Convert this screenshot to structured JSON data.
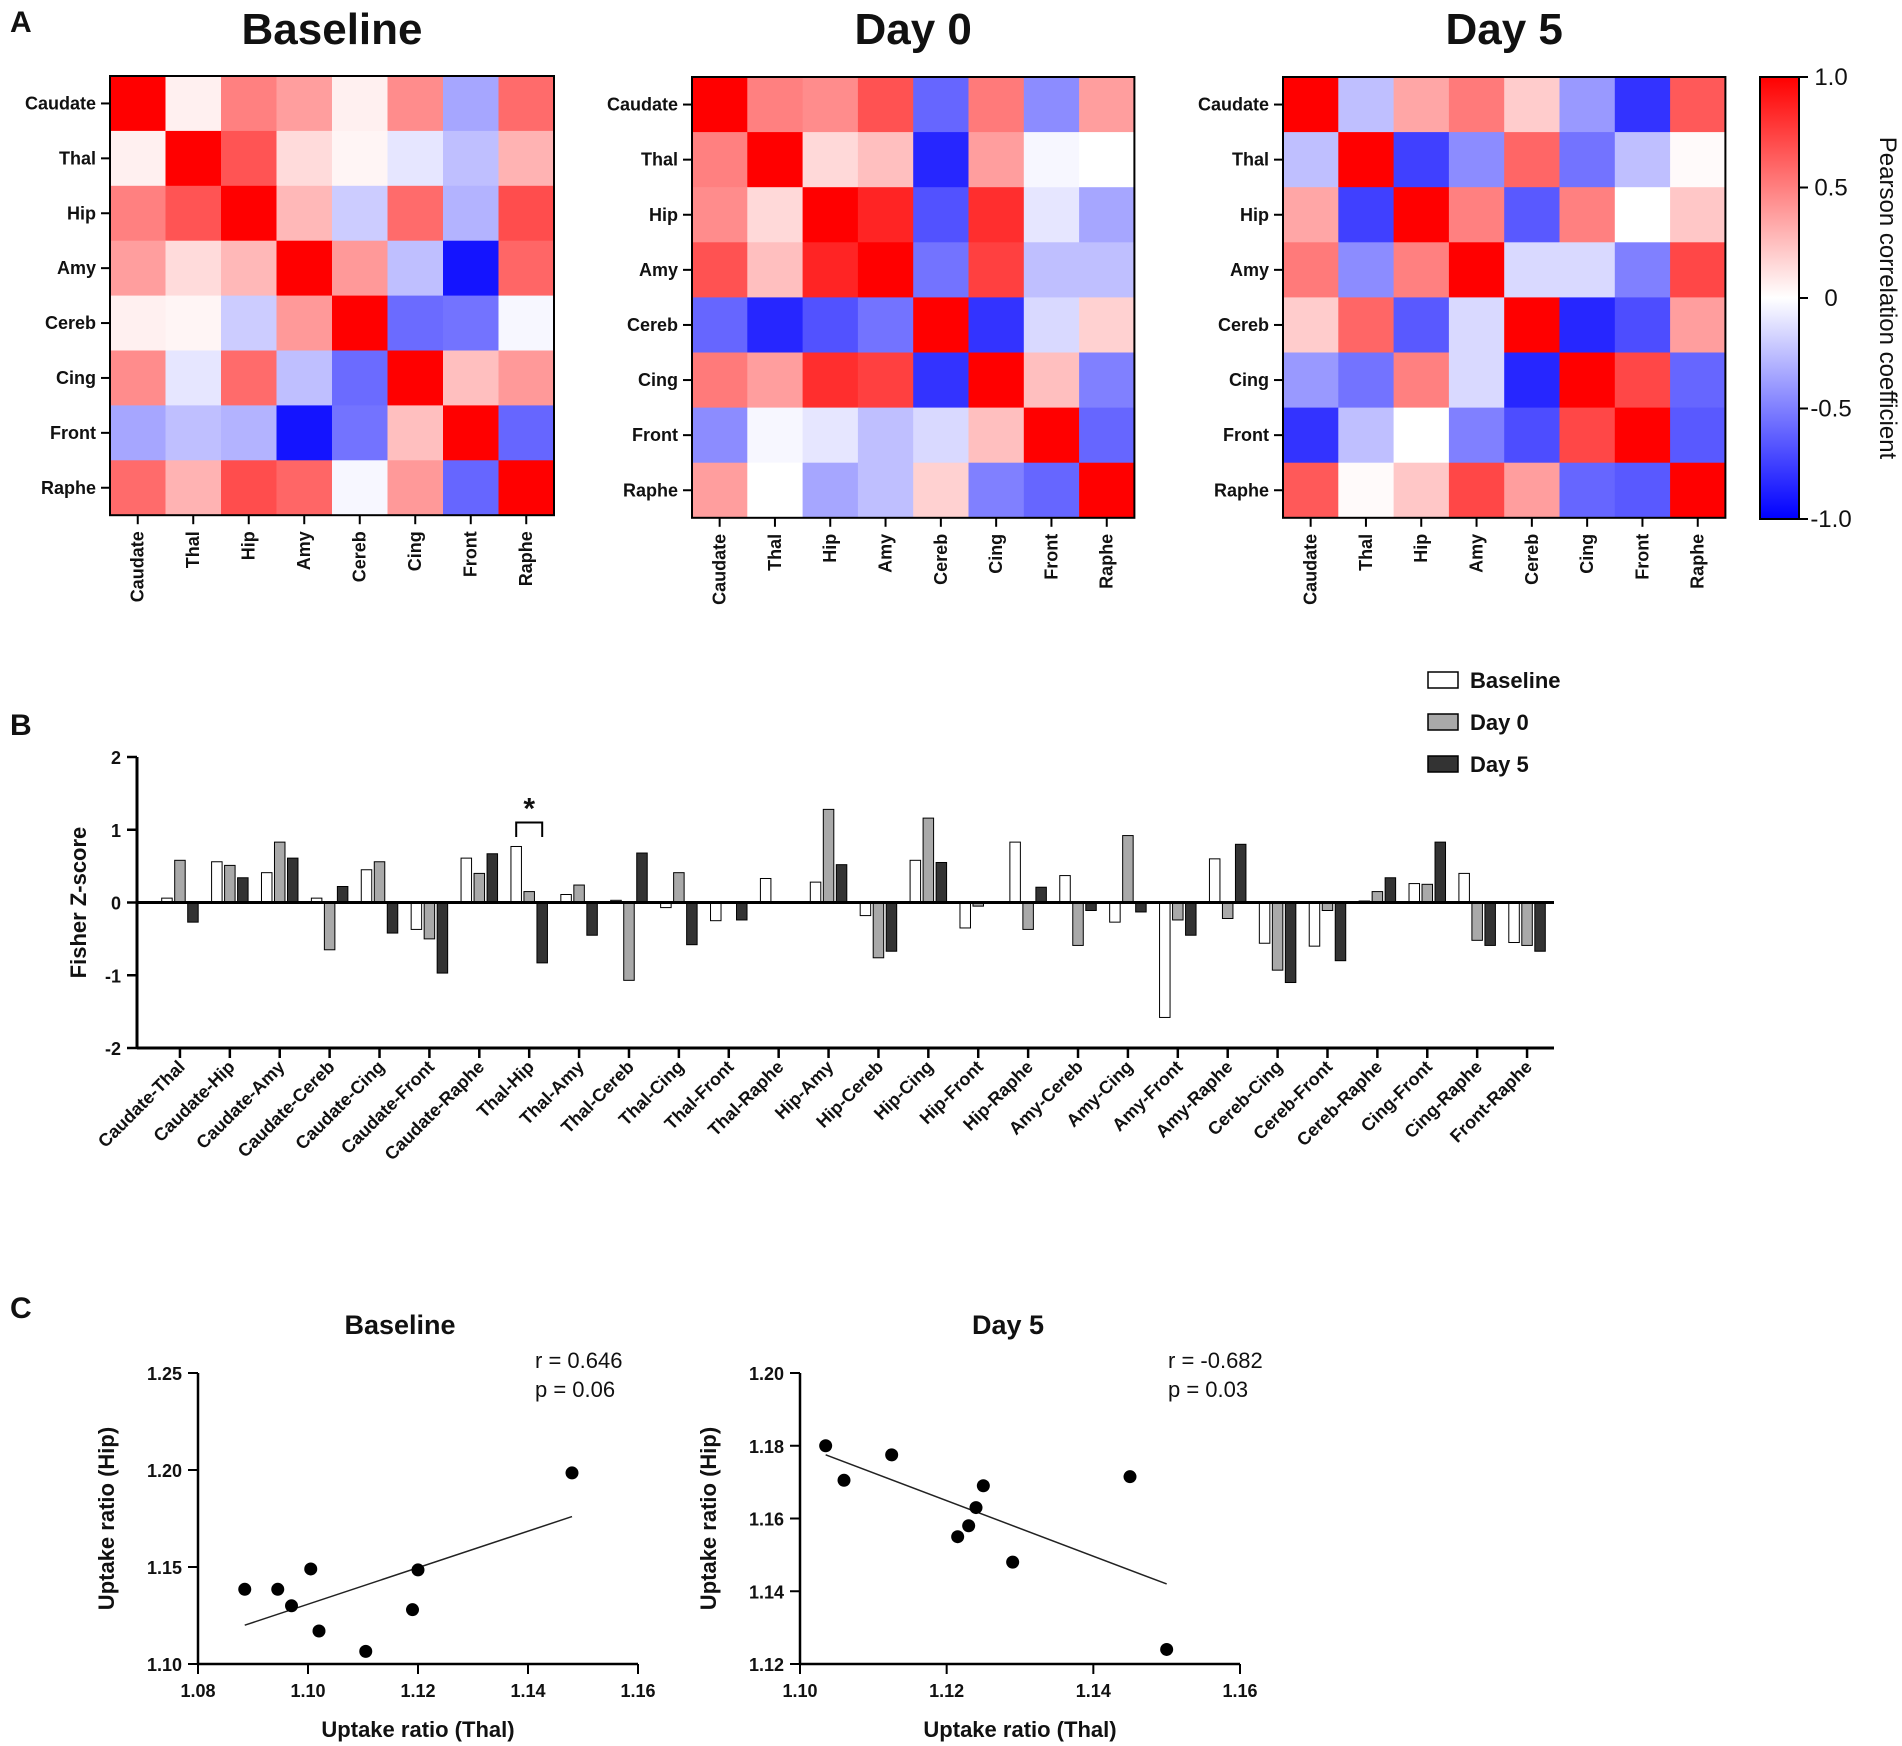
{
  "panels": {
    "A": "A",
    "B": "B",
    "C": "C"
  },
  "chart_data": [
    {
      "type": "heatmap",
      "id": "heatmap-baseline",
      "title": "Baseline",
      "rows": [
        "Caudate",
        "Thal",
        "Hip",
        "Amy",
        "Cereb",
        "Cing",
        "Front",
        "Raphe"
      ],
      "cols": [
        "Caudate",
        "Thal",
        "Hip",
        "Amy",
        "Cereb",
        "Cing",
        "Front",
        "Raphe"
      ],
      "values": [
        [
          1.0,
          0.06,
          0.5,
          0.38,
          0.06,
          0.45,
          -0.35,
          0.58
        ],
        [
          0.06,
          1.0,
          0.67,
          0.14,
          0.04,
          -0.1,
          -0.25,
          0.3
        ],
        [
          0.5,
          0.67,
          1.0,
          0.28,
          -0.2,
          0.58,
          -0.3,
          0.7
        ],
        [
          0.38,
          0.14,
          0.28,
          1.0,
          0.4,
          -0.25,
          -0.92,
          0.6
        ],
        [
          0.06,
          0.04,
          -0.2,
          0.4,
          1.0,
          -0.58,
          -0.55,
          -0.03
        ],
        [
          0.45,
          -0.1,
          0.58,
          -0.25,
          -0.58,
          1.0,
          0.25,
          0.4
        ],
        [
          -0.35,
          -0.25,
          -0.3,
          -0.92,
          -0.55,
          0.25,
          1.0,
          -0.6
        ],
        [
          0.58,
          0.3,
          0.7,
          0.6,
          -0.03,
          0.4,
          -0.6,
          1.0
        ]
      ]
    },
    {
      "type": "heatmap",
      "id": "heatmap-day0",
      "title": "Day 0",
      "rows": [
        "Caudate",
        "Thal",
        "Hip",
        "Amy",
        "Cereb",
        "Cing",
        "Front",
        "Raphe"
      ],
      "cols": [
        "Caudate",
        "Thal",
        "Hip",
        "Amy",
        "Cereb",
        "Cing",
        "Front",
        "Raphe"
      ],
      "values": [
        [
          1.0,
          0.5,
          0.45,
          0.68,
          -0.6,
          0.52,
          -0.45,
          0.38
        ],
        [
          0.5,
          1.0,
          0.15,
          0.25,
          -0.85,
          0.38,
          -0.03,
          0.0
        ],
        [
          0.45,
          0.15,
          1.0,
          0.86,
          -0.68,
          0.82,
          -0.1,
          -0.35
        ],
        [
          0.68,
          0.25,
          0.86,
          1.0,
          -0.55,
          0.75,
          -0.25,
          -0.25
        ],
        [
          -0.6,
          -0.85,
          -0.68,
          -0.55,
          1.0,
          -0.8,
          -0.15,
          0.18
        ],
        [
          0.52,
          0.38,
          0.82,
          0.75,
          -0.8,
          1.0,
          0.25,
          -0.5
        ],
        [
          -0.45,
          -0.03,
          -0.1,
          -0.25,
          -0.15,
          0.25,
          1.0,
          -0.6
        ],
        [
          0.38,
          0.0,
          -0.35,
          -0.25,
          0.18,
          -0.5,
          -0.6,
          1.0
        ]
      ]
    },
    {
      "type": "heatmap",
      "id": "heatmap-day5",
      "title": "Day 5",
      "rows": [
        "Caudate",
        "Thal",
        "Hip",
        "Amy",
        "Cereb",
        "Cing",
        "Front",
        "Raphe"
      ],
      "cols": [
        "Caudate",
        "Thal",
        "Hip",
        "Amy",
        "Cereb",
        "Cing",
        "Front",
        "Raphe"
      ],
      "values": [
        [
          1.0,
          -0.25,
          0.35,
          0.52,
          0.2,
          -0.4,
          -0.8,
          0.65
        ],
        [
          -0.25,
          1.0,
          -0.75,
          -0.45,
          0.6,
          -0.55,
          -0.25,
          0.02
        ],
        [
          0.35,
          -0.75,
          1.0,
          0.5,
          -0.65,
          0.5,
          0.0,
          0.22
        ],
        [
          0.52,
          -0.45,
          0.5,
          1.0,
          -0.15,
          -0.15,
          -0.5,
          0.72
        ],
        [
          0.2,
          0.6,
          -0.65,
          -0.15,
          1.0,
          -0.85,
          -0.7,
          0.38
        ],
        [
          -0.4,
          -0.55,
          0.5,
          -0.15,
          -0.85,
          1.0,
          0.72,
          -0.6
        ],
        [
          -0.8,
          -0.25,
          0.0,
          -0.5,
          -0.7,
          0.72,
          1.0,
          -0.65
        ],
        [
          0.65,
          0.02,
          0.22,
          0.72,
          0.38,
          -0.6,
          -0.65,
          1.0
        ]
      ]
    },
    {
      "type": "colorbar",
      "id": "colorbar",
      "label": "Pearson correlation coefficient",
      "range": [
        -1.0,
        1.0
      ],
      "ticks": [
        1.0,
        0.5,
        0,
        -0.5,
        -1.0
      ],
      "tick_labels": [
        "1.0",
        "0.5",
        "0",
        "-0.5",
        "-1.0"
      ],
      "colors": {
        "low": "#0000ff",
        "mid": "#ffffff",
        "high": "#ff0000"
      }
    },
    {
      "type": "bar",
      "id": "fisher-bars",
      "ylabel": "Fisher Z-score",
      "ylim": [
        -2,
        2
      ],
      "yticks": [
        2,
        1,
        0,
        -1,
        -2
      ],
      "ytick_labels": [
        "2",
        "1",
        "0",
        "-1",
        "-2"
      ],
      "categories": [
        "Caudate-Thal",
        "Caudate-Hip",
        "Caudate-Amy",
        "Caudate-Cereb",
        "Caudate-Cing",
        "Caudate-Front",
        "Caudate-Raphe",
        "Thal-Hip",
        "Thal-Amy",
        "Thal-Cereb",
        "Thal-Cing",
        "Thal-Front",
        "Thal-Raphe",
        "Hip-Amy",
        "Hip-Cereb",
        "Hip-Cing",
        "Hip-Front",
        "Hip-Raphe",
        "Amy-Cereb",
        "Amy-Cing",
        "Amy-Front",
        "Amy-Raphe",
        "Cereb-Cing",
        "Cereb-Front",
        "Cereb-Raphe",
        "Cing-Front",
        "Cing-Raphe",
        "Front-Raphe"
      ],
      "series": [
        {
          "name": "Baseline",
          "color": "#ffffff",
          "values": [
            0.06,
            0.56,
            0.41,
            0.06,
            0.45,
            -0.37,
            0.61,
            0.77,
            0.11,
            0.03,
            -0.07,
            -0.25,
            0.33,
            0.28,
            -0.18,
            0.58,
            -0.35,
            0.83,
            0.37,
            -0.27,
            -1.58,
            0.6,
            -0.56,
            -0.6,
            0.02,
            0.26,
            0.4,
            -0.55
          ]
        },
        {
          "name": "Day 0",
          "color": "#a9a9a9",
          "values": [
            0.58,
            0.51,
            0.83,
            -0.65,
            0.56,
            -0.5,
            0.4,
            0.15,
            0.24,
            -1.07,
            0.41,
            0.0,
            0.0,
            1.28,
            -0.76,
            1.16,
            -0.05,
            -0.37,
            -0.59,
            0.92,
            -0.24,
            -0.22,
            -0.93,
            -0.11,
            0.15,
            0.25,
            -0.52,
            -0.59
          ]
        },
        {
          "name": "Day 5",
          "color": "#333333",
          "values": [
            -0.27,
            0.34,
            0.61,
            0.22,
            -0.42,
            -0.97,
            0.67,
            -0.83,
            -0.45,
            0.68,
            -0.58,
            -0.24,
            0.0,
            0.52,
            -0.67,
            0.55,
            0.0,
            0.21,
            -0.11,
            -0.13,
            -0.45,
            0.8,
            -1.1,
            -0.8,
            0.34,
            0.83,
            -0.59,
            -0.67
          ]
        }
      ],
      "annotation": {
        "text": "*",
        "category": "Thal-Hip"
      }
    },
    {
      "type": "scatter",
      "id": "scatter-baseline",
      "title": "Baseline",
      "xlabel": "Uptake ratio (Thal)",
      "ylabel": "Uptake ratio (Hip)",
      "xlim": [
        1.08,
        1.16
      ],
      "ylim": [
        1.1,
        1.25
      ],
      "xticks": [
        1.08,
        1.1,
        1.12,
        1.14,
        1.16
      ],
      "xtick_labels": [
        "1.08",
        "1.10",
        "1.12",
        "1.14",
        "1.16"
      ],
      "yticks": [
        1.1,
        1.15,
        1.2,
        1.25
      ],
      "ytick_labels": [
        "1.10",
        "1.15",
        "1.20",
        "1.25"
      ],
      "points": [
        [
          1.0885,
          1.1385
        ],
        [
          1.0945,
          1.1385
        ],
        [
          1.097,
          1.13
        ],
        [
          1.1005,
          1.149
        ],
        [
          1.102,
          1.117
        ],
        [
          1.1105,
          1.1065
        ],
        [
          1.119,
          1.128
        ],
        [
          1.12,
          1.1485
        ],
        [
          1.148,
          1.1985
        ]
      ],
      "fit": [
        [
          1.0885,
          1.12
        ],
        [
          1.148,
          1.176
        ]
      ],
      "stats": [
        "r = 0.646",
        "p = 0.06"
      ]
    },
    {
      "type": "scatter",
      "id": "scatter-day5",
      "title": "Day 5",
      "xlabel": "Uptake ratio (Thal)",
      "ylabel": "Uptake ratio (Hip)",
      "xlim": [
        1.1,
        1.16
      ],
      "ylim": [
        1.12,
        1.2
      ],
      "xticks": [
        1.1,
        1.12,
        1.14,
        1.16
      ],
      "xtick_labels": [
        "1.10",
        "1.12",
        "1.14",
        "1.16"
      ],
      "yticks": [
        1.12,
        1.14,
        1.16,
        1.18,
        1.2
      ],
      "ytick_labels": [
        "1.12",
        "1.14",
        "1.16",
        "1.18",
        "1.20"
      ],
      "points": [
        [
          1.1035,
          1.18
        ],
        [
          1.106,
          1.1705
        ],
        [
          1.1125,
          1.1775
        ],
        [
          1.1215,
          1.155
        ],
        [
          1.123,
          1.158
        ],
        [
          1.124,
          1.163
        ],
        [
          1.125,
          1.169
        ],
        [
          1.129,
          1.148
        ],
        [
          1.145,
          1.1715
        ],
        [
          1.15,
          1.124
        ]
      ],
      "fit": [
        [
          1.1035,
          1.1775
        ],
        [
          1.15,
          1.142
        ]
      ],
      "stats": [
        "r = -0.682",
        "p = 0.03"
      ]
    }
  ]
}
